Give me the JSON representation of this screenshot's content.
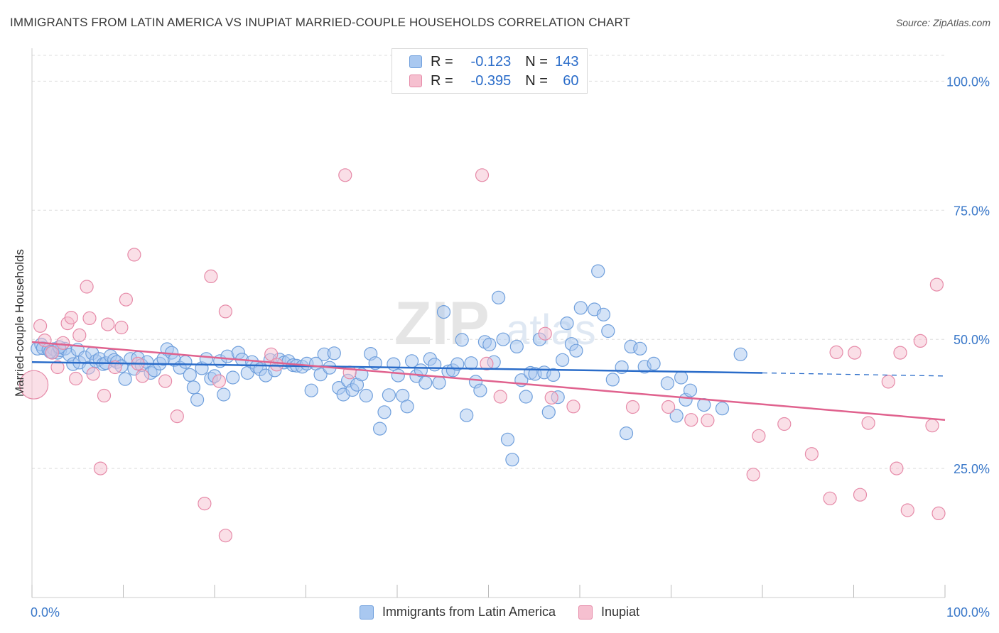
{
  "header": {
    "title": "IMMIGRANTS FROM LATIN AMERICA VS INUPIAT MARRIED-COUPLE HOUSEHOLDS CORRELATION CHART",
    "source": "Source: ZipAtlas.com"
  },
  "watermark": "ZIPatlas",
  "legend": {
    "rows": [
      {
        "r_label": "R =",
        "r_value": "-0.123",
        "n_label": "N =",
        "n_value": "143"
      },
      {
        "r_label": "R =",
        "r_value": "-0.395",
        "n_label": "N =",
        "n_value": "60"
      }
    ]
  },
  "colors": {
    "blue_fill": "#a9c8f0",
    "blue_edge": "#6f9fdc",
    "blue_line": "#2a6cc9",
    "pink_fill": "#f6c0d0",
    "pink_edge": "#e68aa8",
    "pink_line": "#e0628e",
    "axis_text": "#3a78c9",
    "grid": "#dddddd"
  },
  "chart_data": {
    "type": "scatter",
    "title": "IMMIGRANTS FROM LATIN AMERICA VS INUPIAT MARRIED-COUPLE HOUSEHOLDS CORRELATION CHART",
    "xlabel": "",
    "ylabel": "Married-couple Households",
    "xlim": [
      0,
      100
    ],
    "ylim": [
      0,
      105
    ],
    "x_tick_labels": [
      "0.0%",
      "100.0%"
    ],
    "y_ticks": [
      25,
      50,
      75,
      100
    ],
    "y_tick_labels": [
      "25.0%",
      "50.0%",
      "75.0%",
      "100.0%"
    ],
    "grid": true,
    "legend_position": "top-center",
    "series": [
      {
        "name": "Immigrants from Latin America",
        "color": "#a9c8f0",
        "trend": {
          "x": [
            0,
            80
          ],
          "y": [
            45.6,
            43.5
          ],
          "dashed_to": [
            100,
            42.9
          ]
        },
        "points": [
          [
            0.6,
            48.2
          ],
          [
            1.0,
            49.0
          ],
          [
            1.2,
            48.3
          ],
          [
            1.8,
            48.0
          ],
          [
            2.2,
            47.5
          ],
          [
            2.4,
            48.1
          ],
          [
            2.8,
            47.4
          ],
          [
            3.1,
            47.9
          ],
          [
            3.6,
            48.2
          ],
          [
            4.1,
            47.0
          ],
          [
            4.5,
            45.2
          ],
          [
            5.0,
            48.0
          ],
          [
            5.2,
            45.5
          ],
          [
            5.8,
            46.5
          ],
          [
            6.2,
            44.5
          ],
          [
            6.6,
            47.3
          ],
          [
            7.0,
            45.8
          ],
          [
            7.4,
            46.2
          ],
          [
            7.8,
            45.2
          ],
          [
            8.1,
            45.4
          ],
          [
            8.6,
            46.8
          ],
          [
            9.0,
            46.0
          ],
          [
            9.3,
            45.6
          ],
          [
            9.8,
            44.8
          ],
          [
            10.2,
            42.3
          ],
          [
            10.8,
            46.2
          ],
          [
            11.2,
            44.3
          ],
          [
            11.6,
            46.4
          ],
          [
            12.0,
            45.0
          ],
          [
            12.6,
            45.6
          ],
          [
            13.0,
            43.5
          ],
          [
            13.4,
            44.0
          ],
          [
            14.0,
            45.3
          ],
          [
            14.4,
            46.2
          ],
          [
            14.8,
            48.1
          ],
          [
            15.3,
            47.4
          ],
          [
            15.6,
            46.0
          ],
          [
            16.2,
            44.5
          ],
          [
            16.8,
            45.6
          ],
          [
            17.3,
            43.1
          ],
          [
            17.7,
            40.7
          ],
          [
            18.1,
            38.3
          ],
          [
            18.6,
            44.4
          ],
          [
            19.1,
            46.2
          ],
          [
            19.6,
            42.4
          ],
          [
            20.0,
            42.9
          ],
          [
            20.6,
            45.8
          ],
          [
            21.0,
            39.3
          ],
          [
            21.4,
            46.7
          ],
          [
            22.0,
            42.6
          ],
          [
            22.6,
            47.4
          ],
          [
            23.0,
            46.1
          ],
          [
            23.6,
            43.5
          ],
          [
            24.1,
            45.6
          ],
          [
            24.6,
            44.7
          ],
          [
            25.0,
            44.2
          ],
          [
            25.6,
            43.0
          ],
          [
            26.1,
            46.0
          ],
          [
            26.6,
            44.0
          ],
          [
            27.1,
            46.1
          ],
          [
            27.6,
            45.5
          ],
          [
            28.1,
            45.8
          ],
          [
            28.6,
            45.0
          ],
          [
            29.0,
            44.9
          ],
          [
            29.6,
            44.7
          ],
          [
            30.1,
            45.3
          ],
          [
            30.6,
            40.1
          ],
          [
            31.1,
            45.3
          ],
          [
            31.6,
            43.2
          ],
          [
            32.0,
            47.1
          ],
          [
            32.6,
            44.5
          ],
          [
            33.1,
            47.3
          ],
          [
            33.6,
            40.6
          ],
          [
            34.1,
            39.3
          ],
          [
            34.6,
            42.0
          ],
          [
            35.1,
            40.2
          ],
          [
            35.6,
            41.2
          ],
          [
            36.1,
            43.2
          ],
          [
            36.6,
            39.1
          ],
          [
            37.1,
            47.2
          ],
          [
            37.6,
            45.4
          ],
          [
            38.1,
            32.7
          ],
          [
            38.6,
            35.9
          ],
          [
            39.1,
            39.2
          ],
          [
            39.6,
            45.2
          ],
          [
            40.1,
            43.0
          ],
          [
            40.6,
            39.1
          ],
          [
            41.1,
            37.0
          ],
          [
            41.6,
            45.8
          ],
          [
            42.1,
            42.9
          ],
          [
            42.6,
            44.0
          ],
          [
            43.1,
            41.6
          ],
          [
            43.6,
            46.2
          ],
          [
            44.1,
            45.1
          ],
          [
            44.6,
            41.6
          ],
          [
            45.1,
            55.3
          ],
          [
            45.6,
            43.8
          ],
          [
            46.1,
            44.0
          ],
          [
            46.6,
            45.2
          ],
          [
            47.1,
            49.9
          ],
          [
            47.6,
            35.3
          ],
          [
            48.1,
            45.4
          ],
          [
            48.6,
            41.8
          ],
          [
            49.1,
            40.1
          ],
          [
            49.6,
            49.5
          ],
          [
            50.1,
            49.0
          ],
          [
            50.6,
            45.6
          ],
          [
            51.1,
            58.1
          ],
          [
            51.6,
            50.0
          ],
          [
            52.1,
            30.6
          ],
          [
            52.6,
            26.7
          ],
          [
            53.1,
            48.6
          ],
          [
            53.6,
            42.1
          ],
          [
            54.1,
            38.9
          ],
          [
            54.6,
            43.5
          ],
          [
            55.1,
            43.3
          ],
          [
            55.6,
            50.0
          ],
          [
            56.1,
            43.6
          ],
          [
            56.6,
            35.9
          ],
          [
            57.1,
            43.1
          ],
          [
            57.6,
            38.8
          ],
          [
            58.1,
            46.0
          ],
          [
            58.6,
            53.1
          ],
          [
            59.1,
            49.1
          ],
          [
            59.6,
            47.8
          ],
          [
            60.1,
            56.1
          ],
          [
            61.6,
            55.8
          ],
          [
            62.0,
            63.2
          ],
          [
            62.6,
            54.8
          ],
          [
            63.1,
            51.6
          ],
          [
            63.6,
            42.2
          ],
          [
            64.6,
            44.6
          ],
          [
            65.1,
            31.8
          ],
          [
            65.6,
            48.6
          ],
          [
            66.6,
            48.2
          ],
          [
            67.1,
            44.7
          ],
          [
            68.1,
            45.3
          ],
          [
            69.6,
            41.5
          ],
          [
            70.6,
            35.2
          ],
          [
            71.1,
            42.6
          ],
          [
            71.6,
            38.3
          ],
          [
            72.1,
            40.1
          ],
          [
            73.6,
            37.3
          ],
          [
            75.6,
            36.6
          ],
          [
            77.6,
            47.1
          ],
          [
            2.0,
            47.6
          ],
          [
            3.0,
            48.5
          ]
        ]
      },
      {
        "name": "Inupiat",
        "color": "#f6c0d0",
        "trend": {
          "x": [
            0,
            100
          ],
          "y": [
            49.5,
            34.4
          ]
        },
        "points": [
          [
            0.2,
            41.2
          ],
          [
            0.9,
            52.6
          ],
          [
            1.4,
            49.8
          ],
          [
            2.2,
            47.4
          ],
          [
            2.8,
            44.6
          ],
          [
            3.4,
            49.3
          ],
          [
            3.9,
            53.1
          ],
          [
            4.3,
            54.2
          ],
          [
            4.8,
            42.4
          ],
          [
            5.2,
            50.8
          ],
          [
            6.0,
            60.2
          ],
          [
            6.3,
            54.1
          ],
          [
            6.7,
            43.3
          ],
          [
            7.5,
            25.0
          ],
          [
            7.9,
            39.1
          ],
          [
            8.3,
            52.9
          ],
          [
            9.1,
            44.6
          ],
          [
            9.8,
            52.3
          ],
          [
            10.3,
            57.7
          ],
          [
            11.2,
            66.4
          ],
          [
            11.6,
            45.3
          ],
          [
            12.1,
            42.9
          ],
          [
            14.6,
            41.9
          ],
          [
            15.9,
            35.1
          ],
          [
            18.9,
            18.2
          ],
          [
            19.6,
            62.2
          ],
          [
            20.5,
            41.9
          ],
          [
            21.2,
            55.4
          ],
          [
            21.2,
            12.0
          ],
          [
            26.2,
            47.1
          ],
          [
            26.8,
            45.1
          ],
          [
            34.3,
            81.8
          ],
          [
            34.8,
            43.6
          ],
          [
            49.3,
            81.8
          ],
          [
            49.8,
            45.3
          ],
          [
            51.3,
            38.9
          ],
          [
            56.2,
            51.1
          ],
          [
            56.9,
            38.7
          ],
          [
            59.3,
            37.0
          ],
          [
            65.8,
            36.9
          ],
          [
            69.7,
            36.9
          ],
          [
            72.2,
            34.4
          ],
          [
            74.0,
            34.3
          ],
          [
            79.0,
            23.8
          ],
          [
            79.6,
            31.3
          ],
          [
            82.4,
            33.6
          ],
          [
            85.4,
            27.8
          ],
          [
            87.4,
            19.2
          ],
          [
            88.1,
            47.5
          ],
          [
            90.1,
            47.4
          ],
          [
            90.7,
            19.9
          ],
          [
            91.6,
            33.8
          ],
          [
            93.8,
            41.8
          ],
          [
            94.7,
            25.0
          ],
          [
            95.1,
            47.4
          ],
          [
            95.9,
            16.9
          ],
          [
            97.3,
            49.7
          ],
          [
            98.6,
            33.3
          ],
          [
            99.1,
            60.6
          ],
          [
            99.3,
            16.3
          ]
        ]
      }
    ]
  }
}
